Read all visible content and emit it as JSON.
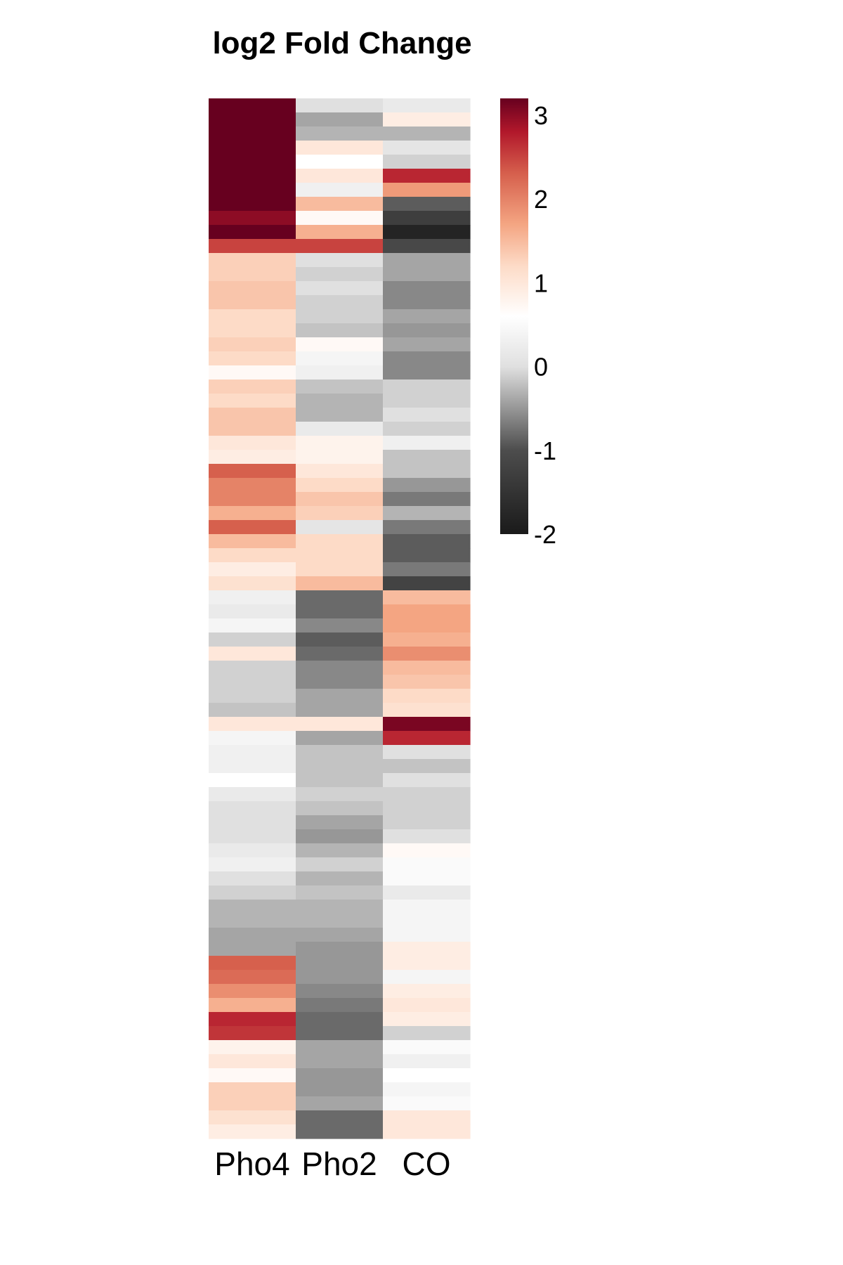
{
  "chart_data": {
    "type": "heatmap",
    "title": "log2 Fold Change",
    "columns": [
      "Pho4",
      "Pho2",
      "CO"
    ],
    "colorbar": {
      "min": -2,
      "max": 3.2,
      "ticks": [
        "3",
        "2",
        "1",
        "0",
        "-1",
        "-2"
      ],
      "tick_values": [
        3,
        2,
        1,
        0,
        -1,
        -2
      ],
      "stops": [
        {
          "value": -2.0,
          "color": "#1a1a1a"
        },
        {
          "value": -1.0,
          "color": "#4d4d4d"
        },
        {
          "value": 0.0,
          "color": "#e0e0e0"
        },
        {
          "value": 0.6,
          "color": "#ffffff"
        },
        {
          "value": 1.2,
          "color": "#fddbc7"
        },
        {
          "value": 1.7,
          "color": "#f4a582"
        },
        {
          "value": 2.3,
          "color": "#d6604d"
        },
        {
          "value": 2.8,
          "color": "#b2182b"
        },
        {
          "value": 3.2,
          "color": "#67001f"
        }
      ]
    },
    "values": [
      [
        3.2,
        0.0,
        0.2
      ],
      [
        3.2,
        -0.4,
        0.9
      ],
      [
        3.2,
        -0.3,
        -0.3
      ],
      [
        3.2,
        1.0,
        0.1
      ],
      [
        3.2,
        0.6,
        -0.1
      ],
      [
        3.2,
        1.0,
        2.7
      ],
      [
        3.2,
        0.3,
        1.8
      ],
      [
        3.2,
        1.5,
        -0.9
      ],
      [
        3.0,
        0.7,
        -1.3
      ],
      [
        3.2,
        1.6,
        -1.8
      ],
      [
        2.5,
        2.5,
        -1.1
      ],
      [
        1.3,
        0.0,
        -0.4
      ],
      [
        1.3,
        -0.1,
        -0.4
      ],
      [
        1.4,
        0.0,
        -0.6
      ],
      [
        1.4,
        -0.1,
        -0.6
      ],
      [
        1.2,
        -0.1,
        -0.4
      ],
      [
        1.2,
        -0.2,
        -0.5
      ],
      [
        1.3,
        0.7,
        -0.4
      ],
      [
        1.2,
        0.4,
        -0.6
      ],
      [
        0.7,
        0.3,
        -0.6
      ],
      [
        1.3,
        -0.2,
        -0.1
      ],
      [
        1.2,
        -0.3,
        -0.1
      ],
      [
        1.4,
        -0.3,
        0.0
      ],
      [
        1.4,
        0.2,
        -0.1
      ],
      [
        1.0,
        0.8,
        0.3
      ],
      [
        0.9,
        0.8,
        -0.2
      ],
      [
        2.3,
        1.0,
        -0.2
      ],
      [
        2.0,
        1.2,
        -0.5
      ],
      [
        2.0,
        1.4,
        -0.7
      ],
      [
        1.6,
        1.3,
        -0.3
      ],
      [
        2.3,
        0.1,
        -0.7
      ],
      [
        1.5,
        1.2,
        -0.9
      ],
      [
        1.2,
        1.2,
        -0.9
      ],
      [
        0.9,
        1.2,
        -0.7
      ],
      [
        1.1,
        1.5,
        -1.2
      ],
      [
        0.3,
        -0.8,
        1.5
      ],
      [
        0.2,
        -0.8,
        1.7
      ],
      [
        0.4,
        -0.6,
        1.7
      ],
      [
        -0.1,
        -0.9,
        1.6
      ],
      [
        1.0,
        -0.8,
        1.9
      ],
      [
        -0.1,
        -0.6,
        1.5
      ],
      [
        -0.1,
        -0.6,
        1.4
      ],
      [
        -0.1,
        -0.4,
        1.2
      ],
      [
        -0.2,
        -0.4,
        1.1
      ],
      [
        1.0,
        1.0,
        3.1
      ],
      [
        0.4,
        -0.4,
        2.7
      ],
      [
        0.3,
        -0.2,
        0.0
      ],
      [
        0.3,
        -0.2,
        -0.2
      ],
      [
        0.6,
        -0.2,
        0.0
      ],
      [
        0.2,
        -0.1,
        -0.1
      ],
      [
        0.0,
        -0.2,
        -0.1
      ],
      [
        0.0,
        -0.4,
        -0.1
      ],
      [
        0.0,
        -0.5,
        0.0
      ],
      [
        0.2,
        -0.3,
        0.7
      ],
      [
        0.3,
        -0.1,
        0.5
      ],
      [
        0.0,
        -0.3,
        0.5
      ],
      [
        -0.1,
        -0.2,
        0.2
      ],
      [
        -0.3,
        -0.3,
        0.4
      ],
      [
        -0.3,
        -0.3,
        0.4
      ],
      [
        -0.4,
        -0.4,
        0.4
      ],
      [
        -0.4,
        -0.5,
        0.9
      ],
      [
        2.3,
        -0.5,
        0.9
      ],
      [
        2.2,
        -0.5,
        0.4
      ],
      [
        1.9,
        -0.6,
        0.9
      ],
      [
        1.6,
        -0.7,
        1.0
      ],
      [
        2.7,
        -0.8,
        0.9
      ],
      [
        2.6,
        -0.8,
        -0.1
      ],
      [
        0.8,
        -0.4,
        0.5
      ],
      [
        1.0,
        -0.4,
        0.3
      ],
      [
        0.7,
        -0.5,
        0.6
      ],
      [
        1.3,
        -0.5,
        0.4
      ],
      [
        1.3,
        -0.4,
        0.5
      ],
      [
        1.1,
        -0.8,
        1.0
      ],
      [
        0.9,
        -0.8,
        1.0
      ]
    ]
  }
}
